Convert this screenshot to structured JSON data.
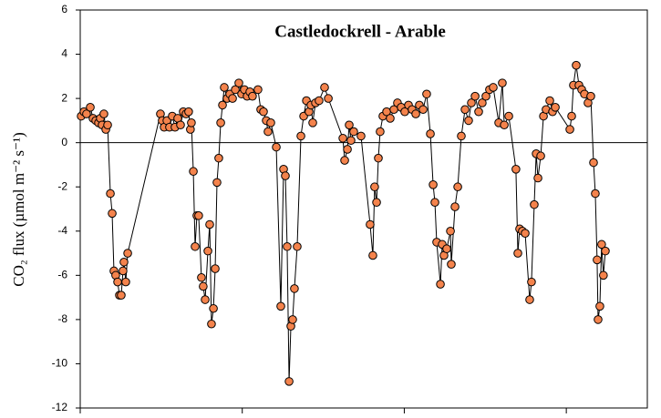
{
  "chart_data": {
    "type": "line",
    "title": "Castledockrell - Arable",
    "y_label": "CO₂ flux (µmol m⁻² s⁻¹)",
    "xlim": [
      0,
      350
    ],
    "xticks": [
      0,
      100,
      200,
      300
    ],
    "ylim": [
      -12,
      6
    ],
    "yticks": [
      -12,
      -10,
      -8,
      -6,
      -4,
      -2,
      0,
      2,
      4,
      6
    ],
    "zero_line": true,
    "x": [
      0.6,
      2.3,
      3.9,
      6.2,
      7.9,
      9.6,
      11.3,
      12.4,
      13.5,
      14.6,
      15.8,
      16.9,
      18.6,
      19.7,
      20.8,
      21.9,
      23.1,
      24.2,
      25.3,
      26.4,
      27.0,
      28.1,
      29.3,
      49.5,
      50.6,
      51.8,
      53.5,
      55.1,
      56.8,
      58.5,
      60.2,
      61.9,
      63.6,
      65.3,
      66.9,
      68.0,
      68.6,
      69.8,
      70.9,
      72.0,
      73.1,
      74.8,
      75.9,
      77.1,
      78.8,
      79.9,
      81.0,
      82.2,
      83.3,
      84.4,
      85.5,
      86.7,
      87.8,
      88.9,
      90.6,
      92.3,
      94.0,
      95.7,
      97.9,
      99.6,
      101.3,
      103.0,
      104.7,
      106.3,
      109.7,
      111.4,
      113.1,
      114.8,
      115.9,
      117.6,
      121.0,
      123.8,
      125.5,
      126.6,
      127.7,
      128.9,
      130.0,
      131.1,
      132.2,
      133.9,
      136.2,
      137.9,
      139.6,
      141.2,
      142.4,
      143.5,
      145.2,
      147.4,
      150.8,
      153.1,
      162.1,
      163.2,
      164.9,
      166.0,
      167.1,
      168.8,
      173.3,
      178.9,
      180.6,
      181.7,
      182.9,
      184.0,
      185.1,
      186.8,
      189.1,
      191.3,
      193.6,
      195.8,
      198.1,
      200.3,
      202.6,
      204.8,
      207.1,
      209.3,
      211.6,
      213.8,
      216.1,
      217.8,
      218.9,
      220.0,
      222.3,
      223.4,
      224.5,
      226.2,
      228.5,
      229.0,
      231.3,
      233.0,
      235.2,
      237.5,
      239.7,
      241.4,
      243.7,
      245.9,
      248.1,
      250.4,
      252.6,
      254.9,
      258.3,
      260.5,
      261.7,
      264.5,
      268.9,
      270.1,
      271.2,
      272.9,
      274.6,
      277.4,
      278.5,
      280.2,
      281.4,
      282.5,
      284.2,
      285.9,
      287.5,
      289.8,
      291.5,
      293.2,
      302.2,
      303.3,
      304.4,
      306.1,
      307.8,
      309.5,
      311.2,
      313.4,
      315.1,
      316.8,
      317.9,
      319.0,
      319.6,
      320.7,
      321.8,
      322.9,
      324.1
    ],
    "series": [
      {
        "color": "#f4834c",
        "line_color": "#000000",
        "values": [
          1.2,
          1.4,
          1.3,
          1.6,
          1.1,
          1.0,
          0.9,
          1.1,
          0.8,
          1.3,
          0.6,
          0.8,
          -2.3,
          -3.2,
          -5.8,
          -6.0,
          -6.3,
          -6.9,
          -6.9,
          -5.8,
          -5.4,
          -6.3,
          -5.0,
          1.3,
          1.0,
          0.7,
          1.0,
          0.7,
          1.2,
          0.7,
          1.1,
          0.8,
          1.4,
          1.3,
          1.4,
          0.6,
          0.9,
          -1.3,
          -4.7,
          -3.3,
          -3.3,
          -6.1,
          -6.5,
          -7.1,
          -4.9,
          -3.7,
          -8.2,
          -7.5,
          -5.7,
          -1.8,
          -0.7,
          0.9,
          1.7,
          2.5,
          2.0,
          2.2,
          2.0,
          2.4,
          2.7,
          2.2,
          2.4,
          2.1,
          2.3,
          2.1,
          2.4,
          1.5,
          1.4,
          1.0,
          0.5,
          0.9,
          -0.2,
          -7.4,
          -1.2,
          -1.5,
          -4.7,
          -10.8,
          -8.3,
          -8.0,
          -6.6,
          -4.7,
          0.3,
          1.2,
          1.9,
          1.4,
          1.7,
          0.9,
          1.8,
          1.9,
          2.5,
          2.0,
          0.2,
          -0.8,
          -0.3,
          0.8,
          0.1,
          0.5,
          0.3,
          -3.7,
          -5.1,
          -2.0,
          -2.7,
          -0.7,
          0.5,
          1.2,
          1.4,
          1.1,
          1.5,
          1.8,
          1.6,
          1.4,
          1.7,
          1.5,
          1.3,
          1.7,
          1.5,
          2.2,
          0.4,
          -1.9,
          -2.7,
          -4.5,
          -6.4,
          -4.6,
          -5.1,
          -4.8,
          -4.0,
          -5.5,
          -2.9,
          -2.0,
          0.3,
          1.5,
          1.0,
          1.8,
          2.1,
          1.4,
          1.8,
          2.1,
          2.4,
          2.5,
          0.9,
          2.7,
          0.8,
          1.2,
          -1.2,
          -5.0,
          -3.9,
          -4.0,
          -4.1,
          -7.1,
          -6.3,
          -2.8,
          -0.5,
          -1.6,
          -0.6,
          1.2,
          1.5,
          1.9,
          1.4,
          1.6,
          0.6,
          1.2,
          2.6,
          3.5,
          2.6,
          2.4,
          2.2,
          1.8,
          2.1,
          -0.9,
          -2.3,
          -5.3,
          -8.0,
          -7.4,
          -4.6,
          -6.0,
          -4.9
        ]
      }
    ]
  }
}
